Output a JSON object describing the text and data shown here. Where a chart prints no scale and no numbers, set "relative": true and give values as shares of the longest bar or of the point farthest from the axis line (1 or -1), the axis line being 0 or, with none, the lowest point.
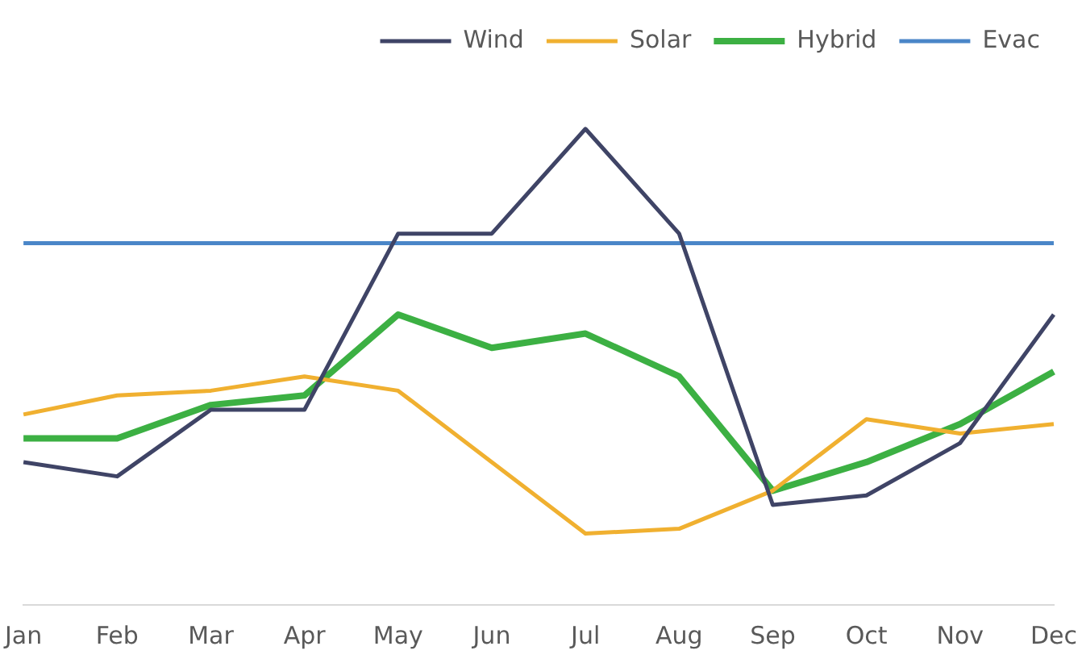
{
  "chart_data": {
    "type": "line",
    "relative": true,
    "legend": "top",
    "marker": "none",
    "categories": [
      "Jan",
      "Feb",
      "Mar",
      "Apr",
      "May",
      "Jun",
      "Jul",
      "Aug",
      "Sep",
      "Oct",
      "Nov",
      "Dec"
    ],
    "series": [
      {
        "name": "Wind",
        "color": "#3f4466",
        "values": [
          0.3,
          0.27,
          0.41,
          0.41,
          0.78,
          0.78,
          1,
          0.78,
          0.21,
          0.23,
          0.34,
          0.61
        ]
      },
      {
        "name": "Solar",
        "color": "#f0b030",
        "values": [
          0.4,
          0.44,
          0.45,
          0.48,
          0.45,
          0.3,
          0.15,
          0.16,
          0.24,
          0.39,
          0.36,
          0.38
        ]
      },
      {
        "name": "Hybrid",
        "color": "#3cb043",
        "values": [
          0.35,
          0.35,
          0.42,
          0.44,
          0.61,
          0.54,
          0.57,
          0.48,
          0.24,
          0.3,
          0.38,
          0.49
        ]
      },
      {
        "name": "Evac",
        "color": "#4a86c8",
        "values": [
          0.76,
          0.76,
          0.76,
          0.76,
          0.76,
          0.76,
          0.76,
          0.76,
          0.76,
          0.76,
          0.76,
          0.76
        ]
      }
    ]
  }
}
